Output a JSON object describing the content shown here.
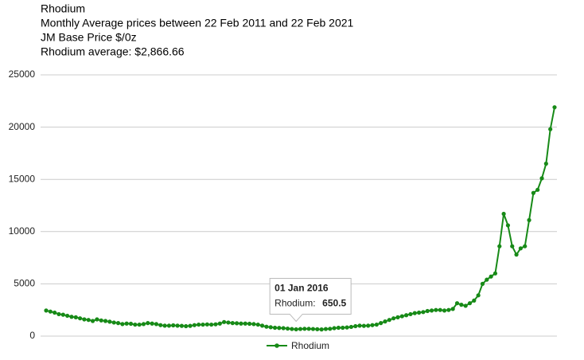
{
  "chart_data": {
    "type": "line",
    "title": "Rhodium",
    "subtitle": [
      "Monthly Average prices between 22 Feb 2011 and 22 Feb 2021",
      "JM Base Price $/0z",
      "Rhodium average: $2,866.66"
    ],
    "categories": [
      null,
      null,
      null,
      null,
      null,
      null,
      null,
      null,
      null,
      null,
      null,
      null,
      null,
      null,
      null,
      null,
      null,
      null,
      null,
      null,
      null,
      null,
      null,
      null,
      null,
      null,
      null,
      null,
      null,
      null,
      null,
      null,
      null,
      null,
      null,
      null,
      null,
      null,
      null,
      null,
      null,
      null,
      null,
      null,
      null,
      null,
      null,
      null,
      null,
      null,
      null,
      null,
      null,
      null,
      null,
      null,
      null,
      null,
      null,
      "01 Jan 2016",
      null,
      null,
      null,
      null,
      null,
      null,
      null,
      null,
      null,
      null,
      null,
      null,
      null,
      null,
      null,
      null,
      null,
      null,
      null,
      null,
      null,
      null,
      null,
      null,
      null,
      null,
      null,
      null,
      null,
      null,
      null,
      null,
      null,
      null,
      null,
      null,
      null,
      null,
      null,
      null,
      null,
      null,
      null,
      null,
      null,
      null,
      null,
      null,
      null,
      null,
      null,
      null,
      null,
      null,
      null,
      null,
      null,
      null,
      null,
      null,
      null
    ],
    "series": [
      {
        "name": "Rhodium",
        "color": "#178a17",
        "values": [
          2450,
          2350,
          2250,
          2100,
          2050,
          1950,
          1850,
          1800,
          1700,
          1600,
          1550,
          1450,
          1600,
          1500,
          1450,
          1380,
          1300,
          1250,
          1150,
          1200,
          1180,
          1100,
          1100,
          1150,
          1250,
          1200,
          1150,
          1050,
          1000,
          1000,
          1030,
          1000,
          980,
          950,
          980,
          1050,
          1100,
          1100,
          1120,
          1100,
          1130,
          1200,
          1350,
          1300,
          1250,
          1230,
          1200,
          1200,
          1180,
          1150,
          1100,
          1000,
          900,
          850,
          800,
          780,
          760,
          720,
          680,
          650.5,
          680,
          700,
          700,
          680,
          660,
          640,
          680,
          700,
          760,
          800,
          800,
          830,
          880,
          950,
          1000,
          980,
          1000,
          1050,
          1100,
          1250,
          1400,
          1550,
          1700,
          1800,
          1900,
          2000,
          2100,
          2200,
          2250,
          2300,
          2400,
          2450,
          2500,
          2500,
          2450,
          2500,
          2600,
          3150,
          3000,
          2900,
          3150,
          3400,
          3900,
          5000,
          5400,
          5700,
          6000,
          8600,
          11700,
          10600,
          8600,
          7800,
          8400,
          8600,
          11100,
          13700,
          14000,
          15100,
          16500,
          19800,
          21900
        ]
      }
    ],
    "ylim": [
      0,
      25000
    ],
    "yticks": [
      0,
      5000,
      10000,
      15000,
      20000,
      25000
    ],
    "grid": true,
    "legend": "bottom",
    "tooltip": {
      "label": "Rhodium:"
    }
  }
}
